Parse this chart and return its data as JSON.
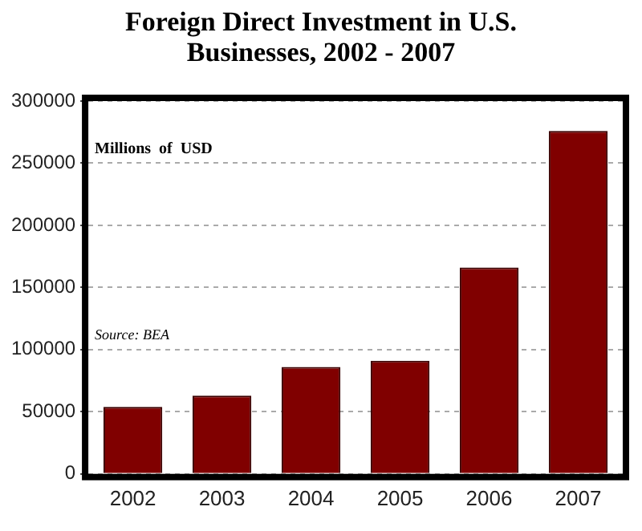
{
  "chart_data": {
    "type": "bar",
    "title": "Foreign Direct Investment in U.S. Businesses, 2002 - 2007",
    "categories": [
      "2002",
      "2003",
      "2004",
      "2005",
      "2006",
      "2007"
    ],
    "values": [
      54000,
      63000,
      86000,
      91000,
      166000,
      276000
    ],
    "color": "#800000",
    "ylim": [
      0,
      300000
    ],
    "yticks": [
      0,
      50000,
      100000,
      150000,
      200000,
      250000,
      300000
    ],
    "grid": "y",
    "legend": false,
    "annotations": [
      "Millions  of  USD",
      "Source: BEA"
    ]
  }
}
